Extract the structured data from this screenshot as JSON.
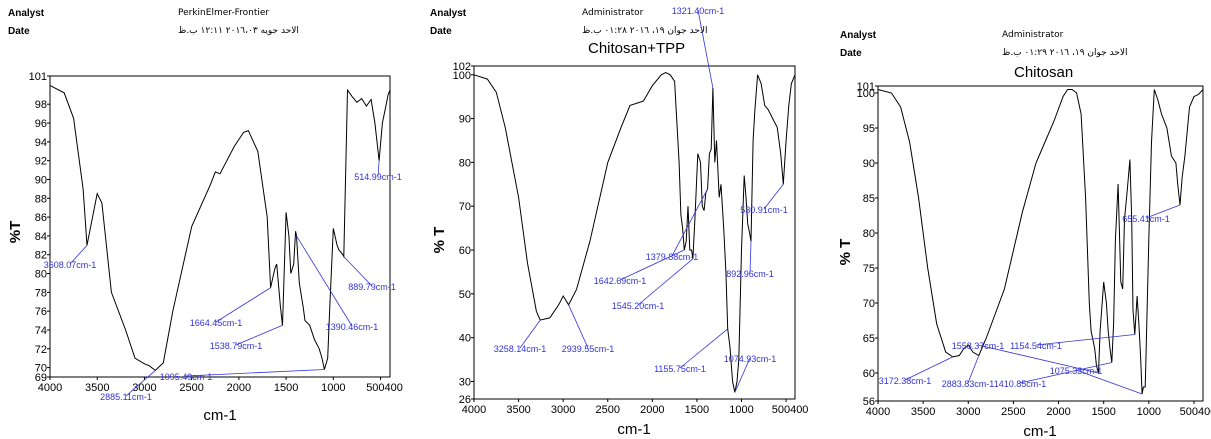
{
  "chart_data": [
    {
      "type": "line",
      "header": {
        "analyst_label": "Analyst",
        "date_label": "Date",
        "operator": "PerkinElmer-Frontier",
        "date_value": "الاحد جويه ٢٠١٦،٠٣ ١٢:١١ ب.ظ"
      },
      "title": "",
      "xlabel": "cm-1",
      "ylabel": "%T",
      "xlim": [
        4000,
        400
      ],
      "ylim": [
        69,
        101
      ],
      "xticks": [
        "4000",
        "3500",
        "3000",
        "2500",
        "2000",
        "1500",
        "1000",
        "500400"
      ],
      "yticks": [
        "101",
        "98",
        "96",
        "94",
        "92",
        "90",
        "88",
        "86",
        "84",
        "82",
        "80",
        "78",
        "76",
        "74",
        "72",
        "70",
        "69"
      ],
      "series": [
        {
          "color": "#000000",
          "x": [
            4000,
            3850,
            3750,
            3650,
            3608,
            3560,
            3500,
            3450,
            3350,
            3200,
            3100,
            3000,
            2950,
            2885,
            2800,
            2700,
            2500,
            2300,
            2250,
            2200,
            2050,
            1950,
            1900,
            1800,
            1700,
            1664,
            1620,
            1600,
            1560,
            1538,
            1500,
            1470,
            1450,
            1420,
            1400,
            1390,
            1360,
            1320,
            1300,
            1250,
            1200,
            1150,
            1120,
            1095,
            1060,
            1040,
            1000,
            960,
            940,
            900,
            889,
            850,
            800,
            750,
            700,
            650,
            600,
            560,
            515,
            480,
            450,
            420,
            400
          ],
          "y": [
            100,
            99.2,
            96.5,
            89,
            83,
            85.5,
            88.5,
            87.5,
            78,
            74,
            71,
            70.4,
            70.2,
            69.7,
            70.5,
            76,
            85,
            89.5,
            90.8,
            90.6,
            93.5,
            95,
            95.2,
            93,
            86,
            78.5,
            80.5,
            81,
            76.5,
            74.5,
            86.5,
            84,
            80,
            81,
            84.5,
            84,
            79,
            76.5,
            75,
            74.5,
            73,
            72,
            71,
            69.8,
            71,
            76,
            84.8,
            83,
            82.5,
            82,
            81.8,
            99.5,
            98.8,
            98.2,
            98.6,
            97.8,
            98.5,
            96,
            92,
            96,
            97.5,
            99,
            99.5
          ]
        }
      ],
      "annotations": [
        {
          "label": "3608.07cm-1",
          "x": 3608,
          "y": 83
        },
        {
          "label": "2885.11cm-1",
          "x": 2885,
          "y": 69.7
        },
        {
          "label": "1664.45cm-1",
          "x": 1664,
          "y": 78.5
        },
        {
          "label": "1538.79cm-1",
          "x": 1538,
          "y": 74.5
        },
        {
          "label": "1390.46cm-1",
          "x": 1390,
          "y": 84
        },
        {
          "label": "1095.49cm-1",
          "x": 1095,
          "y": 69.8
        },
        {
          "label": "889.79cm-1",
          "x": 889,
          "y": 81.8
        },
        {
          "label": "514.99cm-1",
          "x": 515,
          "y": 92
        }
      ]
    },
    {
      "type": "line",
      "header": {
        "analyst_label": "Analyst",
        "date_label": "Date",
        "operator": "Administrator",
        "date_value": "الاحد جوان ١٩، ٢٠١٦ ٠١:٢٨ ب.ظ"
      },
      "title": "Chitosan+TPP",
      "xlabel": "cm-1",
      "ylabel": "% T",
      "xlim": [
        4000,
        400
      ],
      "ylim": [
        26,
        102
      ],
      "xticks": [
        "4000",
        "3500",
        "3000",
        "2500",
        "2000",
        "1500",
        "1000",
        "500400"
      ],
      "yticks": [
        "102",
        "100",
        "90",
        "80",
        "70",
        "60",
        "50",
        "40",
        "30",
        "26"
      ],
      "series": [
        {
          "color": "#000000",
          "x": [
            4000,
            3850,
            3750,
            3650,
            3500,
            3400,
            3300,
            3258,
            3150,
            3050,
            3000,
            2939,
            2850,
            2700,
            2500,
            2350,
            2250,
            2100,
            2000,
            1900,
            1850,
            1800,
            1750,
            1700,
            1680,
            1660,
            1642,
            1620,
            1600,
            1580,
            1560,
            1545,
            1520,
            1490,
            1460,
            1440,
            1420,
            1400,
            1380,
            1360,
            1340,
            1321,
            1300,
            1280,
            1250,
            1230,
            1200,
            1175,
            1155,
            1130,
            1100,
            1075,
            1050,
            1030,
            1000,
            970,
            950,
            930,
            910,
            893,
            870,
            850,
            820,
            780,
            740,
            700,
            650,
            600,
            560,
            531,
            500,
            470,
            440,
            400
          ],
          "y": [
            100,
            99,
            96,
            88,
            72,
            57,
            46,
            44,
            44.5,
            47.5,
            49.5,
            47.5,
            51,
            62,
            80,
            88,
            93,
            94,
            97.5,
            100,
            100.5,
            100,
            98.5,
            80,
            68,
            65,
            60,
            62,
            70,
            60,
            60,
            58,
            68,
            82,
            80,
            70,
            69,
            73,
            74,
            82,
            83,
            97,
            80,
            85,
            72,
            75,
            65,
            55,
            42,
            38,
            30,
            27.5,
            30,
            35,
            60,
            77,
            72,
            66,
            64,
            62,
            85,
            92,
            100,
            98,
            93,
            92,
            90,
            88,
            82,
            75,
            85,
            93,
            98,
            100
          ]
        }
      ],
      "annotations": [
        {
          "label": "3258.14cm-1",
          "x": 3258,
          "y": 44
        },
        {
          "label": "2939.55cm-1",
          "x": 2939,
          "y": 47.5
        },
        {
          "label": "1642.69cm-1",
          "x": 1642,
          "y": 60
        },
        {
          "label": "1545.20cm-1",
          "x": 1545,
          "y": 58
        },
        {
          "label": "1379.88cm-1",
          "x": 1379,
          "y": 74
        },
        {
          "label": "1321.40cm-1",
          "x": 1321,
          "y": 97
        },
        {
          "label": "1155.75cm-1",
          "x": 1155,
          "y": 42
        },
        {
          "label": "1074.93cm-1",
          "x": 1075,
          "y": 27.5
        },
        {
          "label": "892.96cm-1",
          "x": 893,
          "y": 62
        },
        {
          "label": "530.91cm-1",
          "x": 531,
          "y": 75
        }
      ]
    },
    {
      "type": "line",
      "header": {
        "analyst_label": "Analyst",
        "date_label": "Date",
        "operator": "Administrator",
        "date_value": "الاحد جوان ١٩، ٢٠١٦ ٠١:٢٩ ب.ظ"
      },
      "title": "Chitosan",
      "xlabel": "cm-1",
      "ylabel": "% T",
      "xlim": [
        4000,
        400
      ],
      "ylim": [
        56,
        101
      ],
      "xticks": [
        "4000",
        "3500",
        "3000",
        "2500",
        "2000",
        "1500",
        "1000",
        "500400"
      ],
      "yticks": [
        "101",
        "100",
        "95",
        "90",
        "85",
        "80",
        "75",
        "70",
        "65",
        "60",
        "56"
      ],
      "series": [
        {
          "color": "#000000",
          "x": [
            4000,
            3850,
            3750,
            3650,
            3550,
            3450,
            3350,
            3250,
            3172,
            3100,
            3050,
            3000,
            2950,
            2883,
            2800,
            2600,
            2400,
            2250,
            2150,
            2050,
            1950,
            1900,
            1850,
            1800,
            1750,
            1700,
            1660,
            1640,
            1600,
            1580,
            1558,
            1540,
            1500,
            1470,
            1450,
            1430,
            1410,
            1390,
            1370,
            1340,
            1310,
            1290,
            1270,
            1240,
            1210,
            1190,
            1175,
            1155,
            1130,
            1110,
            1090,
            1075,
            1060,
            1040,
            1030,
            1000,
            970,
            940,
            900,
            860,
            800,
            750,
            700,
            680,
            655,
            630,
            600,
            550,
            500,
            450,
            400
          ],
          "y": [
            100.5,
            100,
            98,
            93,
            85,
            75,
            67,
            63,
            62.3,
            62.5,
            63.5,
            64,
            63,
            62.5,
            65,
            72,
            83,
            90,
            93,
            96,
            99.5,
            100.5,
            100.5,
            100,
            97,
            85,
            70,
            66,
            63.5,
            61,
            60,
            66,
            73,
            70,
            66,
            63.5,
            61.5,
            67,
            79,
            87,
            73,
            72,
            82,
            86,
            90.5,
            82,
            69,
            65.5,
            71,
            67,
            62,
            57,
            58,
            58,
            63,
            79,
            93,
            100.5,
            99,
            97,
            95,
            91,
            90,
            87,
            84,
            88,
            91,
            98,
            99.5,
            99.8,
            100.5
          ]
        }
      ],
      "annotations": [
        {
          "label": "3172.38cm-1",
          "x": 3172,
          "y": 62.3
        },
        {
          "label": "2883.83cm-1",
          "x": 2883,
          "y": 62.5
        },
        {
          "label": "1558.37cm-1",
          "x": 1558,
          "y": 60
        },
        {
          "label": "1410.85cm-1",
          "x": 1410,
          "y": 61.5
        },
        {
          "label": "1154.54cm-1",
          "x": 1155,
          "y": 65.5
        },
        {
          "label": "1075.33cm-1",
          "x": 1075,
          "y": 57
        },
        {
          "label": "655.41cm-1",
          "x": 655,
          "y": 84
        }
      ]
    }
  ]
}
